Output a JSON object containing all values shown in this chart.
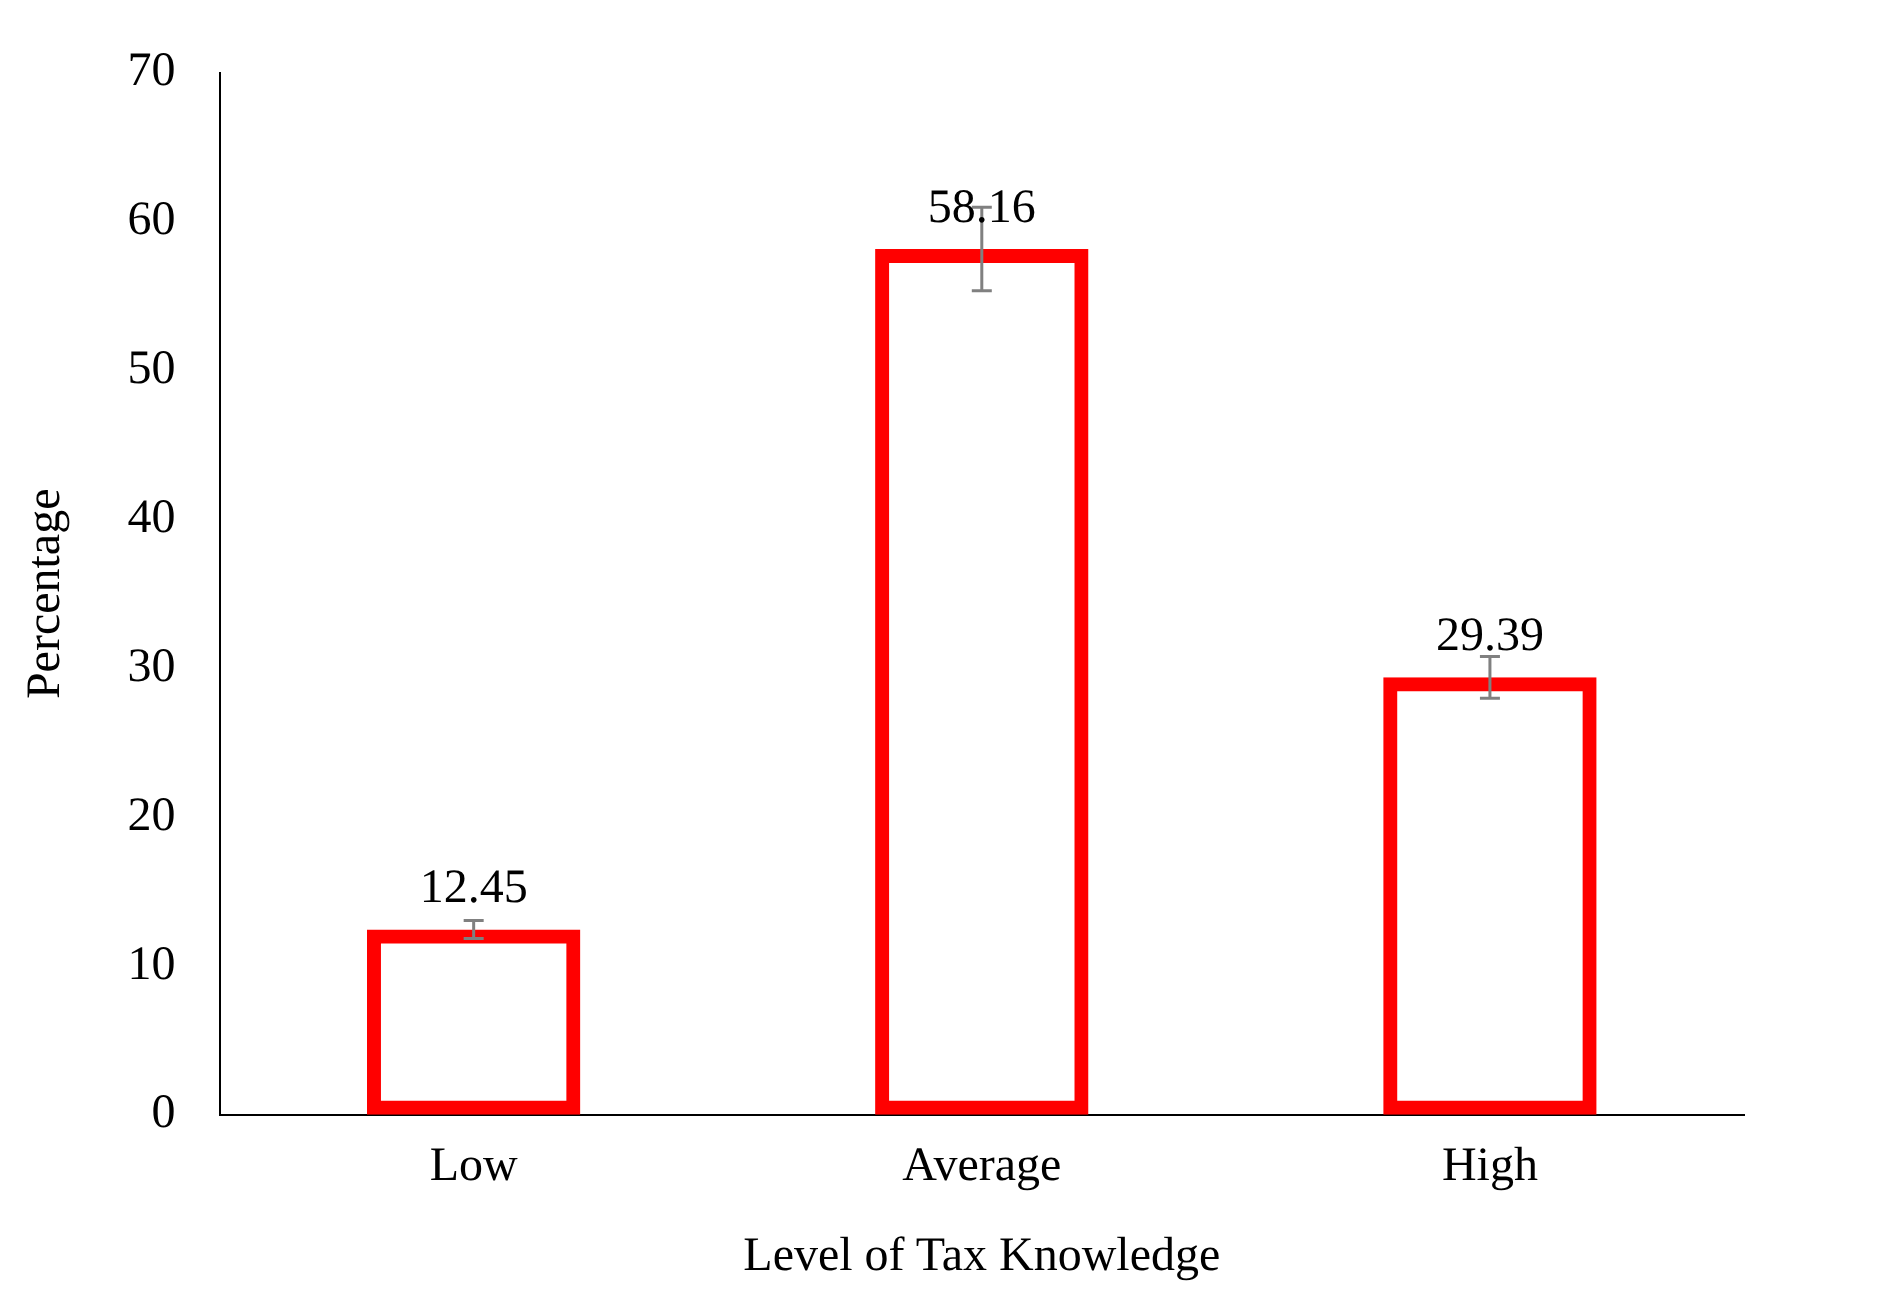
{
  "chart_data": {
    "type": "bar",
    "xlabel": "Level of Tax Knowledge",
    "ylabel": "Percentage",
    "categories": [
      "Low",
      "Average",
      "High"
    ],
    "values": [
      12.45,
      58.16,
      29.39
    ],
    "errors": [
      0.6,
      2.8,
      1.4
    ],
    "color": "#ff0000",
    "ylim": [
      0,
      70
    ],
    "yticks": [
      0,
      10,
      20,
      30,
      40,
      50,
      60,
      70
    ],
    "data_labels": true,
    "grid": false,
    "legend": false
  }
}
